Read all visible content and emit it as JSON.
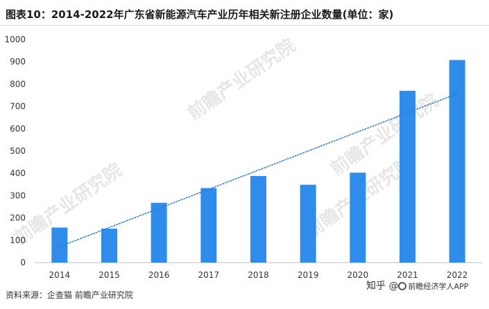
{
  "title": "图表10：2014-2022年广东省新能源汽车产业历年相关新注册企业数量(单位：家)",
  "source": "资料来源：企查猫 前瞻产业研究院",
  "credit": {
    "prefix": "知乎 @",
    "brand": "前瞻经济学人APP"
  },
  "watermark_text": "前瞻产业研究院",
  "colors": {
    "bar": "#2f8ceb",
    "trend": "#2f7ec9",
    "axis": "#bfbfbf",
    "text": "#333333"
  },
  "chart_data": {
    "type": "bar",
    "title": "图表10：2014-2022年广东省新能源汽车产业历年相关新注册企业数量(单位：家)",
    "categories": [
      "2014",
      "2015",
      "2016",
      "2017",
      "2018",
      "2019",
      "2020",
      "2021",
      "2022"
    ],
    "series": [
      {
        "values": [
          157,
          152,
          268,
          334,
          388,
          349,
          403,
          770,
          908
        ]
      }
    ],
    "trendline": {
      "type": "linear",
      "style": "dotted"
    },
    "ylim": [
      0,
      1000
    ],
    "yticks": [
      0,
      100,
      200,
      300,
      400,
      500,
      600,
      700,
      800,
      900,
      1000
    ],
    "xlabel": "",
    "ylabel": "",
    "grid": false,
    "legend": "none"
  }
}
